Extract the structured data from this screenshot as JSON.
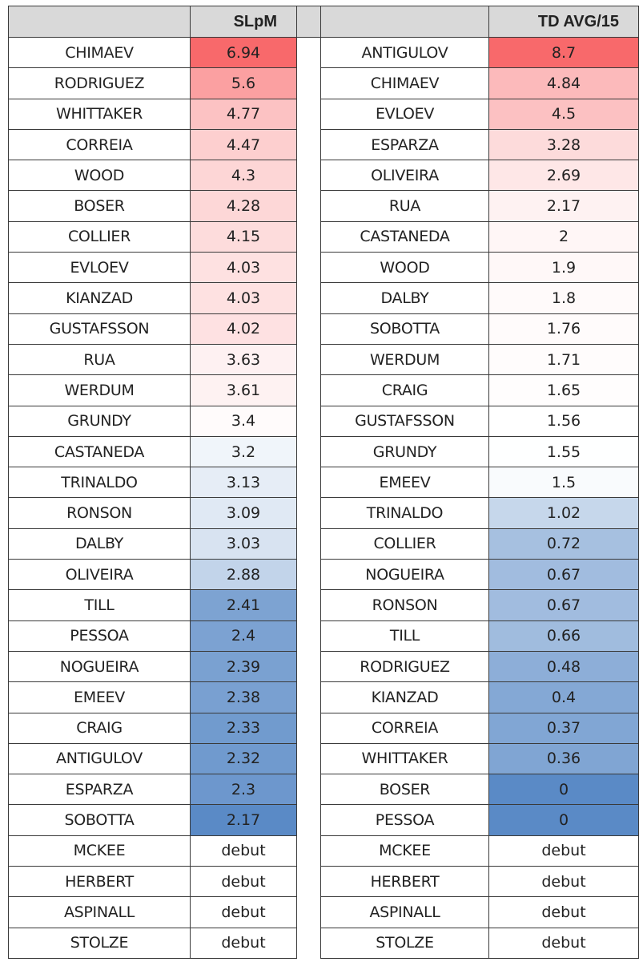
{
  "headers": {
    "left_value": "SLpM",
    "right_value": "TD AVG/15"
  },
  "colors": {
    "max": "#F8696B",
    "mid": "#FFFFFF",
    "min": "#5A8AC6",
    "header_bg": "#D9D9D9"
  },
  "left": [
    {
      "name": "CHIMAEV",
      "value": "6.94"
    },
    {
      "name": "RODRIGUEZ",
      "value": "5.6"
    },
    {
      "name": "WHITTAKER",
      "value": "4.77"
    },
    {
      "name": "CORREIA",
      "value": "4.47"
    },
    {
      "name": "WOOD",
      "value": "4.3"
    },
    {
      "name": "BOSER",
      "value": "4.28"
    },
    {
      "name": "COLLIER",
      "value": "4.15"
    },
    {
      "name": "EVLOEV",
      "value": "4.03"
    },
    {
      "name": "KIANZAD",
      "value": "4.03"
    },
    {
      "name": "GUSTAFSSON",
      "value": "4.02"
    },
    {
      "name": "RUA",
      "value": "3.63"
    },
    {
      "name": "WERDUM",
      "value": "3.61"
    },
    {
      "name": "GRUNDY",
      "value": "3.4"
    },
    {
      "name": "CASTANEDA",
      "value": "3.2"
    },
    {
      "name": "TRINALDO",
      "value": "3.13"
    },
    {
      "name": "RONSON",
      "value": "3.09"
    },
    {
      "name": "DALBY",
      "value": "3.03"
    },
    {
      "name": "OLIVEIRA",
      "value": "2.88"
    },
    {
      "name": "TILL",
      "value": "2.41"
    },
    {
      "name": "PESSOA",
      "value": "2.4"
    },
    {
      "name": "NOGUEIRA",
      "value": "2.39"
    },
    {
      "name": "EMEEV",
      "value": "2.38"
    },
    {
      "name": "CRAIG",
      "value": "2.33"
    },
    {
      "name": "ANTIGULOV",
      "value": "2.32"
    },
    {
      "name": "ESPARZA",
      "value": "2.3"
    },
    {
      "name": "SOBOTTA",
      "value": "2.17"
    },
    {
      "name": "MCKEE",
      "value": "debut"
    },
    {
      "name": "HERBERT",
      "value": "debut"
    },
    {
      "name": "ASPINALL",
      "value": "debut"
    },
    {
      "name": "STOLZE",
      "value": "debut"
    }
  ],
  "right": [
    {
      "name": "ANTIGULOV",
      "value": "8.7"
    },
    {
      "name": "CHIMAEV",
      "value": "4.84"
    },
    {
      "name": "EVLOEV",
      "value": "4.5"
    },
    {
      "name": "ESPARZA",
      "value": "3.28"
    },
    {
      "name": "OLIVEIRA",
      "value": "2.69"
    },
    {
      "name": "RUA",
      "value": "2.17"
    },
    {
      "name": "CASTANEDA",
      "value": "2"
    },
    {
      "name": "WOOD",
      "value": "1.9"
    },
    {
      "name": "DALBY",
      "value": "1.8"
    },
    {
      "name": "SOBOTTA",
      "value": "1.76"
    },
    {
      "name": "WERDUM",
      "value": "1.71"
    },
    {
      "name": "CRAIG",
      "value": "1.65"
    },
    {
      "name": "GUSTAFSSON",
      "value": "1.56"
    },
    {
      "name": "GRUNDY",
      "value": "1.55"
    },
    {
      "name": "EMEEV",
      "value": "1.5"
    },
    {
      "name": "TRINALDO",
      "value": "1.02"
    },
    {
      "name": "COLLIER",
      "value": "0.72"
    },
    {
      "name": "NOGUEIRA",
      "value": "0.67"
    },
    {
      "name": "RONSON",
      "value": "0.67"
    },
    {
      "name": "TILL",
      "value": "0.66"
    },
    {
      "name": "RODRIGUEZ",
      "value": "0.48"
    },
    {
      "name": "KIANZAD",
      "value": "0.4"
    },
    {
      "name": "CORREIA",
      "value": "0.37"
    },
    {
      "name": "WHITTAKER",
      "value": "0.36"
    },
    {
      "name": "BOSER",
      "value": "0"
    },
    {
      "name": "PESSOA",
      "value": "0"
    },
    {
      "name": "MCKEE",
      "value": "debut"
    },
    {
      "name": "HERBERT",
      "value": "debut"
    },
    {
      "name": "ASPINALL",
      "value": "debut"
    },
    {
      "name": "STOLZE",
      "value": "debut"
    }
  ]
}
